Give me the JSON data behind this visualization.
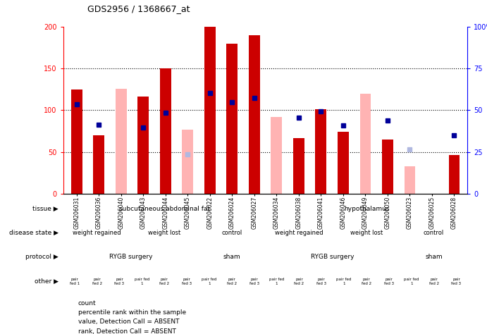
{
  "title": "GDS2956 / 1368667_at",
  "samples": [
    "GSM206031",
    "GSM206036",
    "GSM206040",
    "GSM206043",
    "GSM206044",
    "GSM206045",
    "GSM206022",
    "GSM206024",
    "GSM206027",
    "GSM206034",
    "GSM206038",
    "GSM206041",
    "GSM206046",
    "GSM206049",
    "GSM206050",
    "GSM206023",
    "GSM206025",
    "GSM206028"
  ],
  "count_values": [
    125,
    70,
    null,
    116,
    150,
    null,
    200,
    180,
    190,
    null,
    67,
    101,
    74,
    null,
    65,
    null,
    null,
    46
  ],
  "rank_values": [
    107,
    83,
    null,
    79,
    97,
    null,
    121,
    110,
    115,
    null,
    91,
    99,
    82,
    null,
    88,
    null,
    null,
    70
  ],
  "count_absent": [
    null,
    null,
    126,
    null,
    null,
    77,
    null,
    null,
    null,
    92,
    null,
    null,
    null,
    120,
    null,
    33,
    null,
    null
  ],
  "rank_absent": [
    null,
    null,
    null,
    null,
    null,
    47,
    null,
    null,
    null,
    null,
    null,
    null,
    null,
    null,
    null,
    53,
    null,
    null
  ],
  "ylim": [
    0,
    200
  ],
  "yticks": [
    0,
    50,
    100,
    150,
    200
  ],
  "ytick_labels_left": [
    "0",
    "50",
    "100",
    "150",
    "200"
  ],
  "ytick_labels_right": [
    "0",
    "25",
    "50",
    "75",
    "100%"
  ],
  "bar_color_count": "#cc0000",
  "bar_color_rank": "#000099",
  "bar_color_count_absent": "#ffb3b3",
  "bar_color_rank_absent": "#b0b8e0",
  "tissue_groups": [
    {
      "label": "subcutaneous abdominal fat",
      "start": 0,
      "end": 9,
      "color": "#aaddaa"
    },
    {
      "label": "hypothalamus",
      "start": 9,
      "end": 18,
      "color": "#55cc55"
    }
  ],
  "disease_groups": [
    {
      "label": "weight regained",
      "start": 0,
      "end": 3,
      "color": "#ccccee"
    },
    {
      "label": "weight lost",
      "start": 3,
      "end": 6,
      "color": "#aaaadd"
    },
    {
      "label": "control",
      "start": 6,
      "end": 9,
      "color": "#8899cc"
    },
    {
      "label": "weight regained",
      "start": 9,
      "end": 12,
      "color": "#ccccee"
    },
    {
      "label": "weight lost",
      "start": 12,
      "end": 15,
      "color": "#aaaadd"
    },
    {
      "label": "control",
      "start": 15,
      "end": 18,
      "color": "#8899cc"
    }
  ],
  "protocol_groups": [
    {
      "label": "RYGB surgery",
      "start": 0,
      "end": 6,
      "color": "#ee44ee"
    },
    {
      "label": "sham",
      "start": 6,
      "end": 9,
      "color": "#cc88dd"
    },
    {
      "label": "RYGB surgery",
      "start": 9,
      "end": 15,
      "color": "#ee44ee"
    },
    {
      "label": "sham",
      "start": 15,
      "end": 18,
      "color": "#cc88dd"
    }
  ],
  "other_labels": [
    "pair\nfed 1",
    "pair\nfed 2",
    "pair\nfed 3",
    "pair fed\n1",
    "pair\nfed 2",
    "pair\nfed 3",
    "pair fed\n1",
    "pair\nfed 2",
    "pair\nfed 3",
    "pair fed\n1",
    "pair\nfed 2",
    "pair\nfed 3",
    "pair fed\n1",
    "pair\nfed 2",
    "pair\nfed 3",
    "pair fed\n1",
    "pair\nfed 2",
    "pair\nfed 3"
  ],
  "other_color": "#ddaa55",
  "row_labels": [
    "tissue",
    "disease state",
    "protocol",
    "other"
  ],
  "legend_items": [
    {
      "label": "count",
      "color": "#cc0000"
    },
    {
      "label": "percentile rank within the sample",
      "color": "#000099"
    },
    {
      "label": "value, Detection Call = ABSENT",
      "color": "#ffb3b3"
    },
    {
      "label": "rank, Detection Call = ABSENT",
      "color": "#b0b8e0"
    }
  ]
}
